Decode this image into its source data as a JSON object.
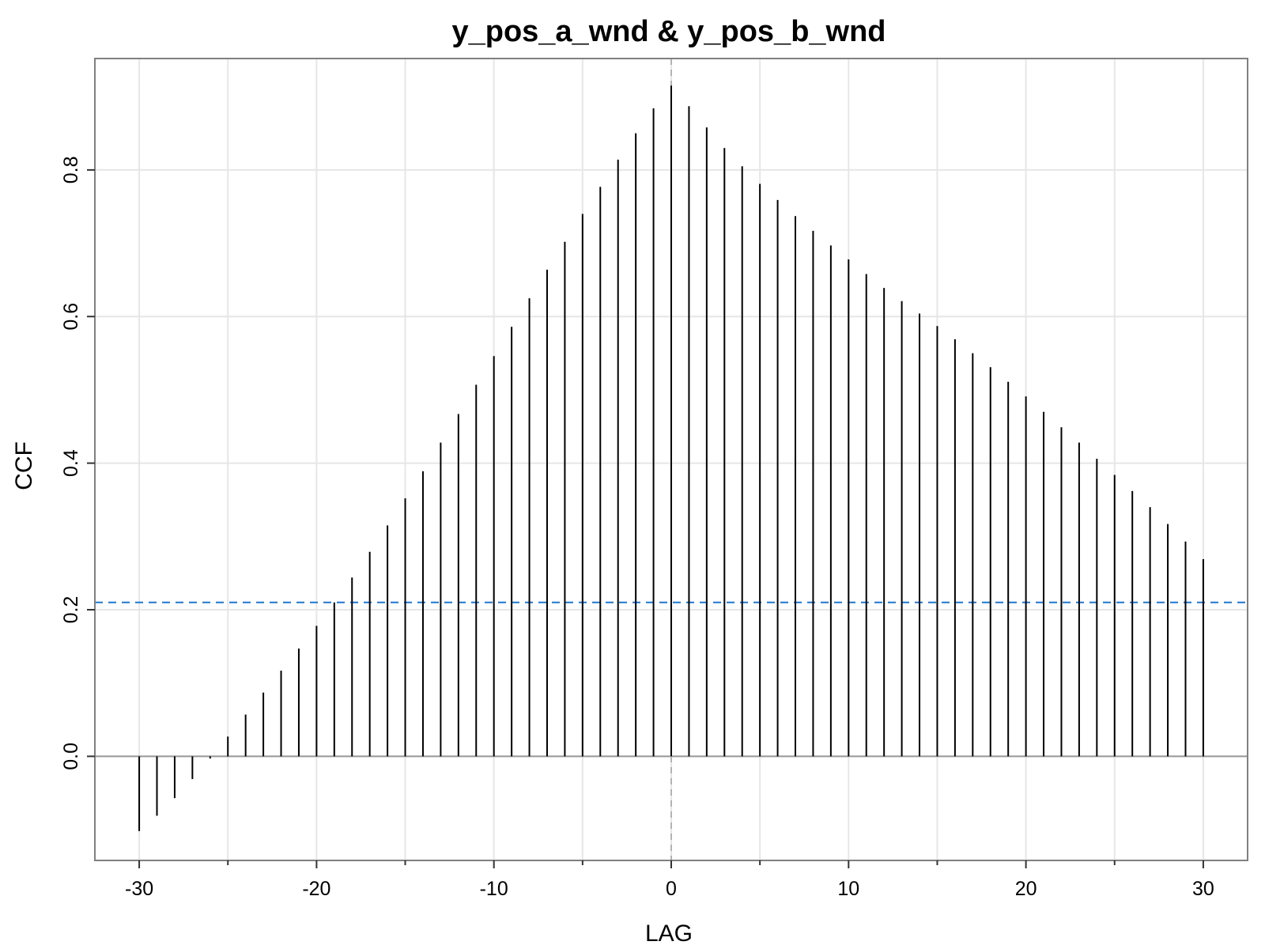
{
  "chart_data": {
    "type": "bar",
    "subtype": "lollipop-spikes",
    "title": "y_pos_a_wnd & y_pos_b_wnd",
    "xlabel": "LAG",
    "ylabel": "CCF",
    "x": [
      -30,
      -29,
      -28,
      -27,
      -26,
      -25,
      -24,
      -23,
      -22,
      -21,
      -20,
      -19,
      -18,
      -17,
      -16,
      -15,
      -14,
      -13,
      -12,
      -11,
      -10,
      -9,
      -8,
      -7,
      -6,
      -5,
      -4,
      -3,
      -2,
      -1,
      0,
      1,
      2,
      3,
      4,
      5,
      6,
      7,
      8,
      9,
      10,
      11,
      12,
      13,
      14,
      15,
      16,
      17,
      18,
      19,
      20,
      21,
      22,
      23,
      24,
      25,
      26,
      27,
      28,
      29,
      30
    ],
    "values": [
      -0.102,
      -0.081,
      -0.057,
      -0.031,
      -0.003,
      0.027,
      0.057,
      0.087,
      0.117,
      0.147,
      0.178,
      0.21,
      0.244,
      0.279,
      0.315,
      0.352,
      0.389,
      0.428,
      0.467,
      0.507,
      0.546,
      0.586,
      0.625,
      0.664,
      0.702,
      0.74,
      0.777,
      0.814,
      0.85,
      0.884,
      0.915,
      0.887,
      0.858,
      0.83,
      0.805,
      0.781,
      0.759,
      0.737,
      0.717,
      0.697,
      0.678,
      0.658,
      0.639,
      0.621,
      0.604,
      0.587,
      0.569,
      0.55,
      0.531,
      0.511,
      0.491,
      0.47,
      0.449,
      0.428,
      0.406,
      0.384,
      0.362,
      0.34,
      0.317,
      0.293,
      0.269
    ],
    "xlim": [
      -32.5,
      32.5
    ],
    "ylim": [
      -0.142,
      0.952
    ],
    "xticks": [
      -30,
      -20,
      -10,
      0,
      10,
      20,
      30
    ],
    "xtick_labels": [
      "-30",
      "-20",
      "-10",
      "0",
      "10",
      "20",
      "30"
    ],
    "yticks": [
      0.0,
      0.2,
      0.4,
      0.6,
      0.8
    ],
    "ytick_labels": [
      "0.0",
      "0.2",
      "0.4",
      "0.6",
      "0.8"
    ],
    "minor_xticks": [
      -25,
      -15,
      -5,
      5,
      15,
      25
    ],
    "confidence_line": 0.21,
    "zero_lag_reference": 0,
    "grid": true,
    "colors": {
      "spike": "#000000",
      "confidence": "#1f77d0",
      "zero_line": "#999999",
      "grid": "#e6e6e6",
      "border": "#808080",
      "vref": "#b3b3b3"
    }
  }
}
